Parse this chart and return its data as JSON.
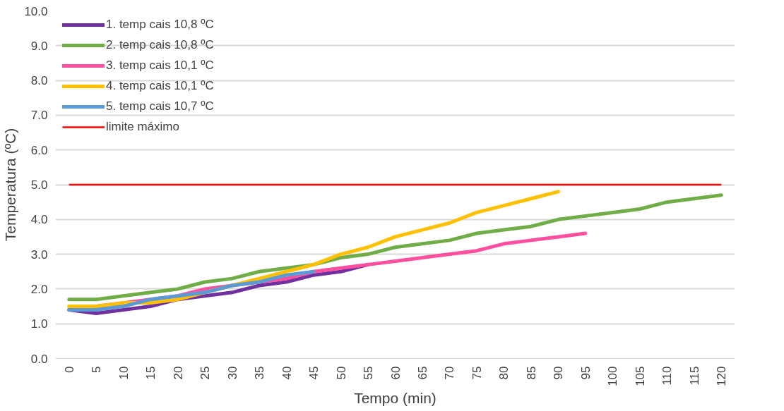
{
  "chart_data": {
    "type": "line",
    "xlabel": "Tempo (min)",
    "ylabel": "Temperatura (ºC)",
    "categories": [
      "0",
      "5",
      "10",
      "15",
      "20",
      "25",
      "30",
      "35",
      "40",
      "45",
      "50",
      "55",
      "60",
      "65",
      "70",
      "75",
      "80",
      "85",
      "90",
      "95",
      "100",
      "105",
      "110",
      "115",
      "120"
    ],
    "ylim": [
      0,
      10
    ],
    "yticks": [
      {
        "value": 0,
        "label": "0.0"
      },
      {
        "value": 1,
        "label": "1.0"
      },
      {
        "value": 2,
        "label": "2.0"
      },
      {
        "value": 3,
        "label": "3.0"
      },
      {
        "value": 4,
        "label": "4.0"
      },
      {
        "value": 5,
        "label": "5.0"
      },
      {
        "value": 6,
        "label": "6.0"
      },
      {
        "value": 7,
        "label": "7.0"
      },
      {
        "value": 8,
        "label": "8.0"
      },
      {
        "value": 9,
        "label": "9.0"
      },
      {
        "value": 10,
        "label": "10.0"
      }
    ],
    "grid": "y",
    "legend": "top left",
    "line_style": "solid",
    "series": [
      {
        "name": "1. temp cais 10,8 ºC",
        "color": "#7030a0",
        "values": [
          1.4,
          1.3,
          1.4,
          1.5,
          1.7,
          1.8,
          1.9,
          2.1,
          2.2,
          2.4,
          2.5,
          2.7,
          null,
          null,
          null,
          null,
          null,
          null,
          null,
          null,
          null,
          null,
          null,
          null,
          null
        ]
      },
      {
        "name": "2. temp cais 10,8 ºC",
        "color": "#70ad47",
        "values": [
          1.7,
          1.7,
          1.8,
          1.9,
          2.0,
          2.2,
          2.3,
          2.5,
          2.6,
          2.7,
          2.9,
          3.0,
          3.2,
          3.3,
          3.4,
          3.6,
          3.7,
          3.8,
          4.0,
          4.1,
          4.2,
          4.3,
          4.5,
          4.6,
          4.7
        ]
      },
      {
        "name": "3. temp cais 10,1 ºC",
        "color": "#ff4f9e",
        "values": [
          1.4,
          1.5,
          1.6,
          1.7,
          1.8,
          2.0,
          2.1,
          2.2,
          2.3,
          2.5,
          2.6,
          2.7,
          2.8,
          2.9,
          3.0,
          3.1,
          3.3,
          3.4,
          3.5,
          3.6,
          null,
          null,
          null,
          null,
          null
        ]
      },
      {
        "name": "4. temp cais 10,1 ºC",
        "color": "#ffc000",
        "values": [
          1.5,
          1.5,
          1.6,
          1.6,
          1.7,
          1.9,
          2.1,
          2.3,
          2.5,
          2.7,
          3.0,
          3.2,
          3.5,
          3.7,
          3.9,
          4.2,
          4.4,
          4.6,
          4.8,
          null,
          null,
          null,
          null,
          null,
          null
        ]
      },
      {
        "name": "5. temp cais 10,7 ºC",
        "color": "#5b9bd5",
        "values": [
          1.4,
          1.4,
          1.5,
          1.7,
          1.8,
          1.9,
          2.1,
          2.2,
          2.4,
          2.5,
          null,
          null,
          null,
          null,
          null,
          null,
          null,
          null,
          null,
          null,
          null,
          null,
          null,
          null,
          null
        ]
      }
    ],
    "ref_lines": [
      {
        "axis": "y",
        "value": 5.0,
        "label": "limite máximo",
        "color": "#ff0000"
      }
    ]
  }
}
